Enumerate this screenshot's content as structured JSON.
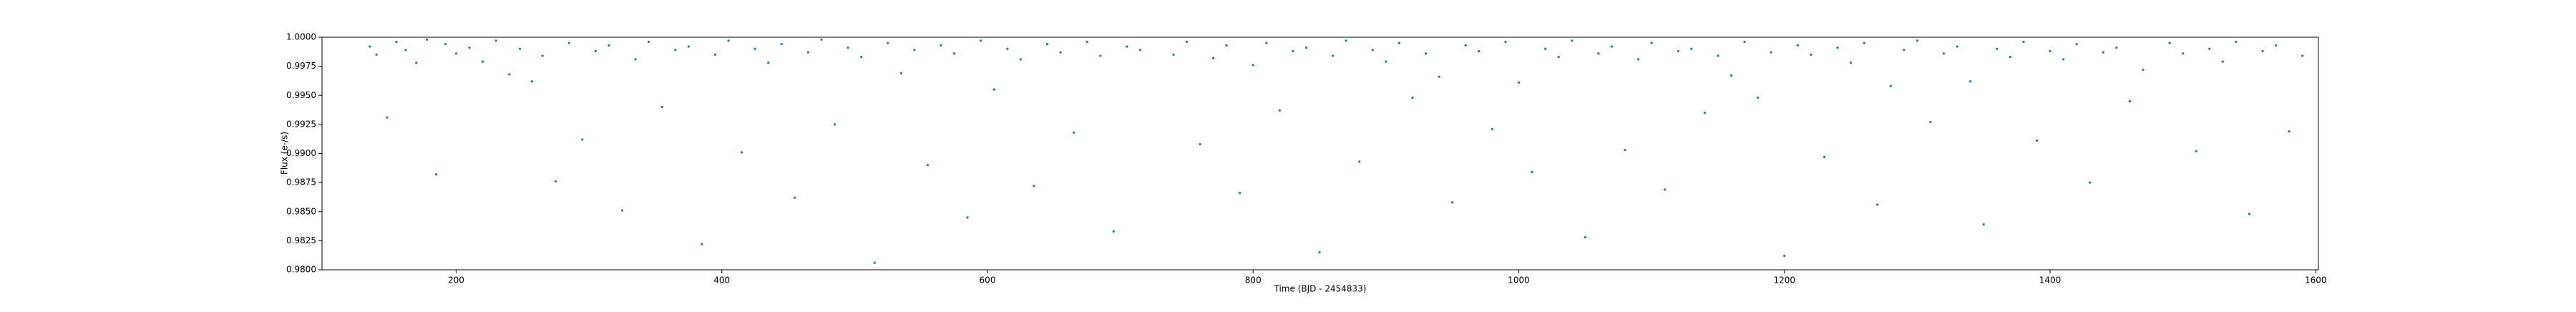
{
  "chart_data": {
    "type": "scatter",
    "x_label": "Time (BJD - 2454833)",
    "y_label": "Flux (e-/s)",
    "color": "#1f77b4",
    "xlim": [
      99,
      1602
    ],
    "ylim": [
      0.98,
      1.0
    ],
    "xticks": [
      200,
      400,
      600,
      800,
      1000,
      1200,
      1400,
      1600
    ],
    "yticks": [
      {
        "value": 0.98,
        "label": "0.9800"
      },
      {
        "value": 0.9825,
        "label": "0.9825"
      },
      {
        "value": 0.985,
        "label": "0.9850"
      },
      {
        "value": 0.9875,
        "label": "0.9875"
      },
      {
        "value": 0.99,
        "label": "0.9900"
      },
      {
        "value": 0.9925,
        "label": "0.9925"
      },
      {
        "value": 0.995,
        "label": "0.9950"
      },
      {
        "value": 0.9975,
        "label": "0.9975"
      },
      {
        "value": 1.0,
        "label": "1.0000"
      }
    ],
    "x": [
      135,
      140,
      148,
      155,
      162,
      170,
      178,
      185,
      192,
      200,
      210,
      220,
      230,
      240,
      248,
      257,
      265,
      275,
      285,
      295,
      305,
      315,
      325,
      335,
      345,
      355,
      365,
      375,
      385,
      395,
      405,
      415,
      425,
      435,
      445,
      455,
      465,
      475,
      485,
      495,
      505,
      515,
      525,
      535,
      545,
      555,
      565,
      575,
      585,
      595,
      605,
      615,
      625,
      635,
      645,
      655,
      665,
      675,
      685,
      695,
      705,
      715,
      740,
      750,
      760,
      770,
      780,
      790,
      800,
      810,
      820,
      830,
      840,
      850,
      860,
      870,
      880,
      890,
      900,
      910,
      920,
      930,
      940,
      950,
      960,
      970,
      980,
      990,
      1000,
      1010,
      1020,
      1030,
      1040,
      1050,
      1060,
      1070,
      1080,
      1090,
      1100,
      1110,
      1120,
      1130,
      1140,
      1150,
      1160,
      1170,
      1180,
      1190,
      1200,
      1210,
      1220,
      1230,
      1240,
      1250,
      1260,
      1270,
      1280,
      1290,
      1300,
      1310,
      1320,
      1330,
      1340,
      1350,
      1360,
      1370,
      1380,
      1390,
      1400,
      1410,
      1420,
      1430,
      1440,
      1450,
      1460,
      1470,
      1490,
      1500,
      1510,
      1520,
      1530,
      1540,
      1550,
      1560,
      1570,
      1580,
      1590
    ],
    "values": [
      0.9992,
      0.9985,
      0.9931,
      0.9996,
      0.9989,
      0.9978,
      0.9998,
      0.9882,
      0.9994,
      0.9986,
      0.9991,
      0.9979,
      0.9997,
      0.9968,
      0.999,
      0.9962,
      0.9984,
      0.9876,
      0.9995,
      0.9912,
      0.9988,
      0.9993,
      0.9851,
      0.9981,
      0.9996,
      0.994,
      0.9989,
      0.9992,
      0.9822,
      0.9985,
      0.9997,
      0.9901,
      0.999,
      0.9978,
      0.9994,
      0.9862,
      0.9987,
      0.9998,
      0.9925,
      0.9991,
      0.9983,
      0.9806,
      0.9995,
      0.9969,
      0.9989,
      0.989,
      0.9993,
      0.9986,
      0.9845,
      0.9997,
      0.9955,
      0.999,
      0.9981,
      0.9872,
      0.9994,
      0.9987,
      0.9918,
      0.9996,
      0.9984,
      0.9833,
      0.9992,
      0.9989,
      0.9985,
      0.9996,
      0.9908,
      0.9982,
      0.9993,
      0.9866,
      0.9976,
      0.9995,
      0.9937,
      0.9988,
      0.9991,
      0.9815,
      0.9984,
      0.9997,
      0.9893,
      0.9989,
      0.9979,
      0.9995,
      0.9948,
      0.9986,
      0.9966,
      0.9858,
      0.9993,
      0.9988,
      0.9921,
      0.9996,
      0.9961,
      0.9884,
      0.999,
      0.9983,
      0.9997,
      0.9828,
      0.9986,
      0.9992,
      0.9903,
      0.9981,
      0.9995,
      0.9869,
      0.9988,
      0.999,
      0.9935,
      0.9984,
      0.9967,
      0.9996,
      0.9948,
      0.9987,
      0.9812,
      0.9993,
      0.9985,
      0.9897,
      0.9991,
      0.9978,
      0.9995,
      0.9856,
      0.9958,
      0.9989,
      0.9997,
      0.9927,
      0.9986,
      0.9992,
      0.9962,
      0.9839,
      0.999,
      0.9983,
      0.9996,
      0.9911,
      0.9988,
      0.9981,
      0.9994,
      0.9875,
      0.9987,
      0.9991,
      0.9945,
      0.9972,
      0.9995,
      0.9986,
      0.9902,
      0.999,
      0.9979,
      0.9996,
      0.9848,
      0.9988,
      0.9993,
      0.9919,
      0.9984
    ]
  }
}
